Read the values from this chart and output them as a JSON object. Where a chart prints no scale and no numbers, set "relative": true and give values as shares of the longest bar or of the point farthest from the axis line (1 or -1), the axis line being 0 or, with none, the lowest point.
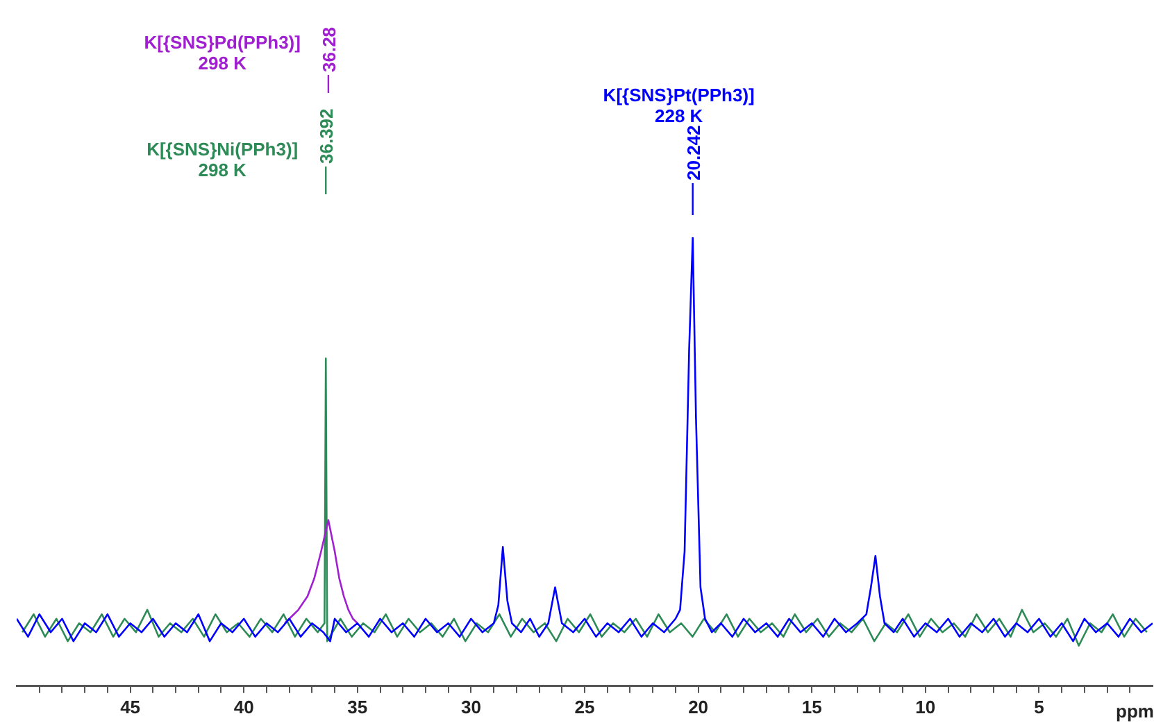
{
  "chart_data": {
    "type": "line",
    "relative": true,
    "xlabel": "ppm",
    "xlim": [
      50,
      0
    ],
    "xticks": [
      {
        "value": 49,
        "label": null
      },
      {
        "value": 48,
        "label": null
      },
      {
        "value": 47,
        "label": null
      },
      {
        "value": 46,
        "label": null
      },
      45,
      {
        "value": 44,
        "label": null
      },
      {
        "value": 43,
        "label": null
      },
      {
        "value": 42,
        "label": null
      },
      {
        "value": 41,
        "label": null
      },
      40,
      {
        "value": 39,
        "label": null
      },
      {
        "value": 38,
        "label": null
      },
      {
        "value": 37,
        "label": null
      },
      {
        "value": 36,
        "label": null
      },
      35,
      {
        "value": 34,
        "label": null
      },
      {
        "value": 33,
        "label": null
      },
      {
        "value": 32,
        "label": null
      },
      {
        "value": 31,
        "label": null
      },
      30,
      {
        "value": 29,
        "label": null
      },
      {
        "value": 28,
        "label": null
      },
      {
        "value": 27,
        "label": null
      },
      {
        "value": 26,
        "label": null
      },
      25,
      {
        "value": 24,
        "label": null
      },
      {
        "value": 23,
        "label": null
      },
      {
        "value": 22,
        "label": null
      },
      {
        "value": 21,
        "label": null
      },
      20,
      {
        "value": 19,
        "label": null
      },
      {
        "value": 18,
        "label": null
      },
      {
        "value": 17,
        "label": null
      },
      {
        "value": 16,
        "label": null
      },
      15,
      {
        "value": 14,
        "label": null
      },
      {
        "value": 13,
        "label": null
      },
      {
        "value": 12,
        "label": null
      },
      {
        "value": 11,
        "label": null
      },
      10,
      {
        "value": 9,
        "label": null
      },
      {
        "value": 8,
        "label": null
      },
      {
        "value": 7,
        "label": null
      },
      {
        "value": 6,
        "label": null
      },
      5,
      {
        "value": 4,
        "label": null
      },
      {
        "value": 3,
        "label": null
      },
      {
        "value": 2,
        "label": null
      },
      {
        "value": 1,
        "label": null
      }
    ],
    "grid": false,
    "legend": false,
    "marker": "none",
    "line_style": "solid",
    "series": [
      {
        "name": "K[{SNS}Pt(PPh3)]",
        "color": "#0000ff",
        "x": [
          50,
          49.5,
          49,
          48.5,
          48,
          47.5,
          47,
          46.5,
          46,
          45.5,
          45,
          44.5,
          44,
          43.5,
          43,
          42.5,
          42,
          41.5,
          41,
          40.5,
          40,
          39.5,
          39,
          38.5,
          38,
          37.5,
          37,
          36.5,
          36.2,
          36,
          35.5,
          35,
          34.5,
          34,
          33.5,
          33,
          32.5,
          32,
          31.5,
          31,
          30.5,
          30,
          29.5,
          29,
          28.8,
          28.6,
          28.4,
          28.2,
          27.8,
          27.4,
          27,
          26.6,
          26.3,
          26,
          25.5,
          25,
          24.5,
          24,
          23.5,
          23,
          22.5,
          22,
          21.5,
          21,
          20.8,
          20.6,
          20.4,
          20.242,
          20.1,
          19.9,
          19.7,
          19.4,
          19,
          18.5,
          18,
          17.5,
          17,
          16.5,
          16,
          15.5,
          15,
          14.5,
          14,
          13.5,
          13,
          12.6,
          12.4,
          12.2,
          12,
          11.8,
          11.4,
          11,
          10.5,
          10,
          9.5,
          9,
          8.5,
          8,
          7.5,
          7,
          6.5,
          6,
          5.5,
          5,
          4.5,
          4,
          3.5,
          3,
          2.5,
          2,
          1.5,
          1,
          0.5,
          0
        ],
        "values": [
          0.15,
          0.11,
          0.16,
          0.12,
          0.15,
          0.1,
          0.14,
          0.12,
          0.16,
          0.11,
          0.14,
          0.12,
          0.15,
          0.11,
          0.14,
          0.12,
          0.16,
          0.1,
          0.14,
          0.12,
          0.15,
          0.11,
          0.14,
          0.12,
          0.15,
          0.11,
          0.14,
          0.12,
          0.1,
          0.15,
          0.12,
          0.14,
          0.11,
          0.15,
          0.12,
          0.14,
          0.11,
          0.15,
          0.12,
          0.14,
          0.11,
          0.15,
          0.12,
          0.14,
          0.18,
          0.31,
          0.19,
          0.14,
          0.12,
          0.15,
          0.11,
          0.14,
          0.22,
          0.14,
          0.12,
          0.15,
          0.11,
          0.14,
          0.12,
          0.15,
          0.11,
          0.14,
          0.12,
          0.15,
          0.17,
          0.3,
          0.75,
          1,
          0.6,
          0.22,
          0.15,
          0.12,
          0.14,
          0.11,
          0.15,
          0.12,
          0.14,
          0.11,
          0.15,
          0.12,
          0.14,
          0.11,
          0.15,
          0.12,
          0.14,
          0.16,
          0.22,
          0.29,
          0.2,
          0.14,
          0.12,
          0.15,
          0.11,
          0.14,
          0.12,
          0.15,
          0.11,
          0.14,
          0.12,
          0.15,
          0.11,
          0.14,
          0.12,
          0.15,
          0.11,
          0.14,
          0.1,
          0.15,
          0.12,
          0.14,
          0.11,
          0.15,
          0.12,
          0.14
        ]
      },
      {
        "name": "K[{SNS}Pd(PPh3)]",
        "color": "#a020d0",
        "x": [
          38.2,
          38,
          37.6,
          37.2,
          36.9,
          36.6,
          36.28,
          36,
          35.8,
          35.6,
          35.4,
          35.2,
          35
        ],
        "values": [
          0.14,
          0.15,
          0.17,
          0.2,
          0.24,
          0.3,
          0.37,
          0.3,
          0.24,
          0.2,
          0.17,
          0.15,
          0.14
        ]
      },
      {
        "name": "K[{SNS}Ni(PPh3)]",
        "color": "#2e8b57",
        "x": [
          49.75,
          49.25,
          48.75,
          48.25,
          47.75,
          47.25,
          46.75,
          46.25,
          45.75,
          45.25,
          44.75,
          44.25,
          43.75,
          43.25,
          42.75,
          42.25,
          41.75,
          41.25,
          40.75,
          40.25,
          39.75,
          39.25,
          38.75,
          38.25,
          37.75,
          37.25,
          36.75,
          36.45,
          36.392,
          36.33,
          35.75,
          35.25,
          34.75,
          34.25,
          33.75,
          33.25,
          32.75,
          32.25,
          31.75,
          31.25,
          30.75,
          30.25,
          29.75,
          29.25,
          28.75,
          28.25,
          27.75,
          27.25,
          26.75,
          26.25,
          25.75,
          25.25,
          24.75,
          24.25,
          23.75,
          23.25,
          22.75,
          22.25,
          21.75,
          21.25,
          20.75,
          20.25,
          19.75,
          19.25,
          18.75,
          18.25,
          17.75,
          17.25,
          16.75,
          16.25,
          15.75,
          15.25,
          14.75,
          14.25,
          13.75,
          13.25,
          12.75,
          12.25,
          11.75,
          11.25,
          10.75,
          10.25,
          9.75,
          9.25,
          8.75,
          8.25,
          7.75,
          7.25,
          6.75,
          6.25,
          5.75,
          5.25,
          4.75,
          4.25,
          3.75,
          3.25,
          2.75,
          2.25,
          1.75,
          1.25,
          0.75,
          0.25
        ],
        "values": [
          0.12,
          0.16,
          0.11,
          0.15,
          0.1,
          0.14,
          0.12,
          0.16,
          0.11,
          0.15,
          0.12,
          0.17,
          0.11,
          0.14,
          0.12,
          0.15,
          0.11,
          0.16,
          0.12,
          0.14,
          0.11,
          0.15,
          0.12,
          0.16,
          0.11,
          0.15,
          0.12,
          0.14,
          0.73,
          0.1,
          0.15,
          0.11,
          0.14,
          0.12,
          0.16,
          0.11,
          0.15,
          0.12,
          0.14,
          0.11,
          0.15,
          0.1,
          0.14,
          0.12,
          0.16,
          0.11,
          0.15,
          0.12,
          0.14,
          0.1,
          0.15,
          0.12,
          0.16,
          0.11,
          0.14,
          0.12,
          0.15,
          0.11,
          0.16,
          0.12,
          0.14,
          0.11,
          0.15,
          0.12,
          0.16,
          0.11,
          0.15,
          0.12,
          0.14,
          0.11,
          0.16,
          0.12,
          0.15,
          0.11,
          0.14,
          0.12,
          0.15,
          0.1,
          0.14,
          0.12,
          0.16,
          0.11,
          0.15,
          0.12,
          0.14,
          0.11,
          0.16,
          0.12,
          0.15,
          0.11,
          0.17,
          0.12,
          0.14,
          0.11,
          0.15,
          0.09,
          0.14,
          0.12,
          0.16,
          0.11,
          0.15,
          0.12
        ]
      }
    ],
    "annotations": [
      "20.242",
      "228 K",
      "36.28",
      "298 K",
      "36.392",
      "298 K"
    ]
  }
}
